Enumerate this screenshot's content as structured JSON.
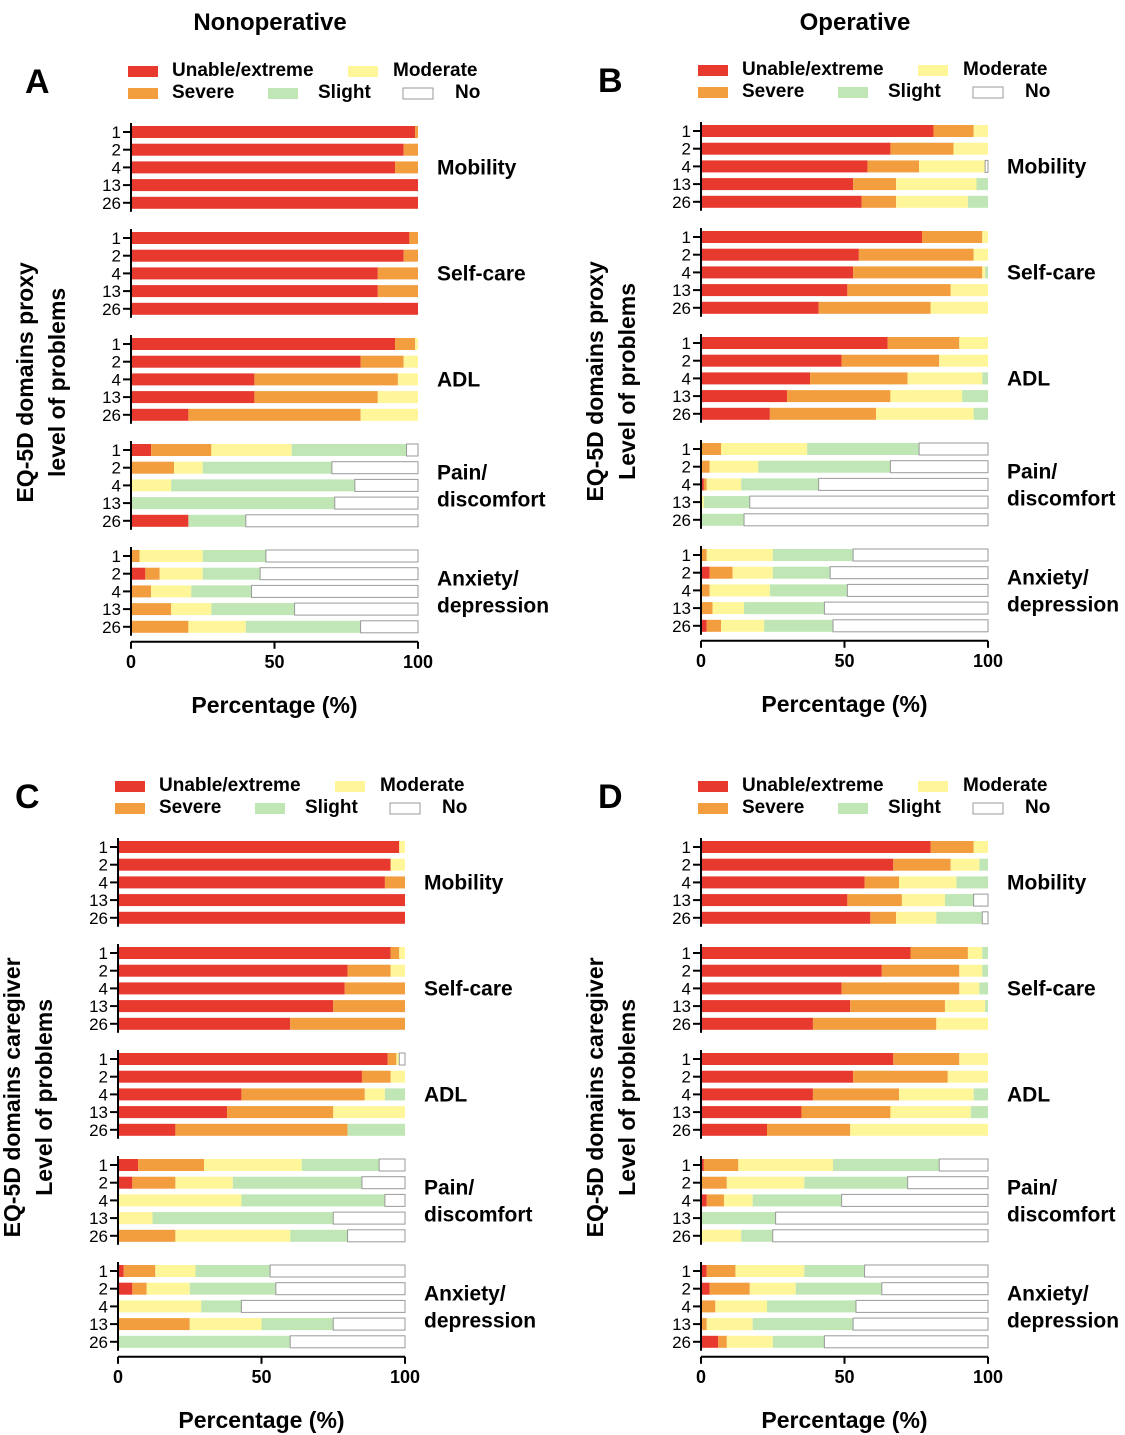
{
  "figure": {
    "column_titles": [
      "Nonoperative",
      "Operative"
    ],
    "legend": [
      {
        "name": "Unable/extreme",
        "color": "#E8392F"
      },
      {
        "name": "Severe",
        "color": "#F29E3F"
      },
      {
        "name": "Moderate",
        "color": "#FFF69A"
      },
      {
        "name": "Slight",
        "color": "#BFE6B4"
      },
      {
        "name": "No",
        "color": "#FFFFFF"
      }
    ],
    "legend_border": "#9a9a9a",
    "bar_border": "#9a9a9a"
  },
  "chart_data": [
    {
      "type": "bar",
      "orientation": "horizontal",
      "stacked": true,
      "panel": "A",
      "title": "Nonoperative",
      "ylabel": [
        "EQ-5D domains proxy",
        "level of problems"
      ],
      "xlabel": "Percentage (%)",
      "xlim": [
        0,
        100
      ],
      "xticks": [
        0,
        50,
        100
      ],
      "categories": [
        "1",
        "2",
        "4",
        "13",
        "26"
      ],
      "domains": [
        {
          "label": [
            "Mobility"
          ],
          "bars": [
            [
              99,
              1,
              0,
              0,
              0
            ],
            [
              95,
              5,
              0,
              0,
              0
            ],
            [
              92,
              8,
              0,
              0,
              0
            ],
            [
              100,
              0,
              0,
              0,
              0
            ],
            [
              100,
              0,
              0,
              0,
              0
            ]
          ]
        },
        {
          "label": [
            "Self-care"
          ],
          "bars": [
            [
              97,
              3,
              0,
              0,
              0
            ],
            [
              95,
              5,
              0,
              0,
              0
            ],
            [
              86,
              14,
              0,
              0,
              0
            ],
            [
              86,
              14,
              0,
              0,
              0
            ],
            [
              100,
              0,
              0,
              0,
              0
            ]
          ]
        },
        {
          "label": [
            "ADL"
          ],
          "bars": [
            [
              92,
              7,
              1,
              0,
              0
            ],
            [
              80,
              15,
              5,
              0,
              0
            ],
            [
              43,
              50,
              7,
              0,
              0
            ],
            [
              43,
              43,
              14,
              0,
              0
            ],
            [
              20,
              60,
              20,
              0,
              0
            ]
          ]
        },
        {
          "label": [
            "Pain/",
            "discomfort"
          ],
          "bars": [
            [
              7,
              21,
              28,
              40,
              4
            ],
            [
              0,
              15,
              10,
              45,
              30
            ],
            [
              0,
              0,
              14,
              64,
              22
            ],
            [
              0,
              0,
              0,
              71,
              29
            ],
            [
              20,
              0,
              0,
              20,
              60
            ]
          ]
        },
        {
          "label": [
            "Anxiety/",
            "depression"
          ],
          "bars": [
            [
              0,
              3,
              22,
              22,
              53
            ],
            [
              5,
              5,
              15,
              20,
              55
            ],
            [
              0,
              7,
              14,
              21,
              58
            ],
            [
              0,
              14,
              14,
              29,
              43
            ],
            [
              0,
              20,
              20,
              40,
              20
            ]
          ]
        }
      ]
    },
    {
      "type": "bar",
      "orientation": "horizontal",
      "stacked": true,
      "panel": "B",
      "title": "Operative",
      "ylabel": [
        "EQ-5D domains proxy",
        "Level of problems"
      ],
      "xlabel": "Percentage (%)",
      "xlim": [
        0,
        100
      ],
      "xticks": [
        0,
        50,
        100
      ],
      "categories": [
        "1",
        "2",
        "4",
        "13",
        "26"
      ],
      "domains": [
        {
          "label": [
            "Mobility"
          ],
          "bars": [
            [
              81,
              14,
              5,
              0,
              0
            ],
            [
              66,
              22,
              12,
              0,
              0
            ],
            [
              58,
              18,
              23,
              0,
              1
            ],
            [
              53,
              15,
              28,
              4,
              0
            ],
            [
              56,
              12,
              25,
              7,
              0
            ]
          ]
        },
        {
          "label": [
            "Self-care"
          ],
          "bars": [
            [
              77,
              21,
              2,
              0,
              0
            ],
            [
              55,
              40,
              5,
              0,
              0
            ],
            [
              53,
              45,
              1,
              1,
              0
            ],
            [
              51,
              36,
              13,
              0,
              0
            ],
            [
              41,
              39,
              20,
              0,
              0
            ]
          ]
        },
        {
          "label": [
            "ADL"
          ],
          "bars": [
            [
              65,
              25,
              10,
              0,
              0
            ],
            [
              49,
              34,
              17,
              0,
              0
            ],
            [
              38,
              34,
              26,
              2,
              0
            ],
            [
              30,
              36,
              25,
              9,
              0
            ],
            [
              24,
              37,
              34,
              5,
              0
            ]
          ]
        },
        {
          "label": [
            "Pain/",
            "discomfort"
          ],
          "bars": [
            [
              0,
              7,
              30,
              39,
              24
            ],
            [
              0,
              3,
              17,
              46,
              34
            ],
            [
              1,
              1,
              12,
              27,
              59
            ],
            [
              0,
              0,
              1,
              16,
              83
            ],
            [
              0,
              0,
              0,
              15,
              85
            ]
          ]
        },
        {
          "label": [
            "Anxiety/",
            "depression"
          ],
          "bars": [
            [
              0,
              2,
              23,
              28,
              47
            ],
            [
              3,
              8,
              14,
              20,
              55
            ],
            [
              0,
              3,
              21,
              27,
              49
            ],
            [
              0,
              4,
              11,
              28,
              57
            ],
            [
              2,
              5,
              15,
              24,
              54
            ]
          ]
        }
      ]
    },
    {
      "type": "bar",
      "orientation": "horizontal",
      "stacked": true,
      "panel": "C",
      "title": "",
      "ylabel": [
        "EQ-5D domains caregiver",
        "Level of problems"
      ],
      "xlabel": "Percentage (%)",
      "xlim": [
        0,
        100
      ],
      "xticks": [
        0,
        50,
        100
      ],
      "categories": [
        "1",
        "2",
        "4",
        "13",
        "26"
      ],
      "domains": [
        {
          "label": [
            "Mobility"
          ],
          "bars": [
            [
              98,
              0,
              2,
              0,
              0
            ],
            [
              95,
              0,
              5,
              0,
              0
            ],
            [
              93,
              7,
              0,
              0,
              0
            ],
            [
              100,
              0,
              0,
              0,
              0
            ],
            [
              100,
              0,
              0,
              0,
              0
            ]
          ]
        },
        {
          "label": [
            "Self-care"
          ],
          "bars": [
            [
              95,
              3,
              2,
              0,
              0
            ],
            [
              80,
              15,
              5,
              0,
              0
            ],
            [
              79,
              21,
              0,
              0,
              0
            ],
            [
              75,
              25,
              0,
              0,
              0
            ],
            [
              60,
              40,
              0,
              0,
              0
            ]
          ]
        },
        {
          "label": [
            "ADL"
          ],
          "bars": [
            [
              94,
              3,
              1,
              0,
              2
            ],
            [
              85,
              10,
              5,
              0,
              0
            ],
            [
              43,
              43,
              7,
              7,
              0
            ],
            [
              38,
              37,
              25,
              0,
              0
            ],
            [
              20,
              60,
              0,
              20,
              0
            ]
          ]
        },
        {
          "label": [
            "Pain/",
            "discomfort"
          ],
          "bars": [
            [
              7,
              23,
              34,
              27,
              9
            ],
            [
              5,
              15,
              20,
              45,
              15
            ],
            [
              0,
              0,
              43,
              50,
              7
            ],
            [
              0,
              0,
              12,
              63,
              25
            ],
            [
              0,
              20,
              40,
              20,
              20
            ]
          ]
        },
        {
          "label": [
            "Anxiety/",
            "depression"
          ],
          "bars": [
            [
              2,
              11,
              14,
              26,
              47
            ],
            [
              5,
              5,
              15,
              30,
              45
            ],
            [
              0,
              0,
              29,
              14,
              57
            ],
            [
              0,
              25,
              25,
              25,
              25
            ],
            [
              0,
              0,
              0,
              60,
              40
            ]
          ]
        }
      ]
    },
    {
      "type": "bar",
      "orientation": "horizontal",
      "stacked": true,
      "panel": "D",
      "title": "",
      "ylabel": [
        "EQ-5D domains caregiver",
        "Level of problems"
      ],
      "xlabel": "Percentage (%)",
      "xlim": [
        0,
        100
      ],
      "xticks": [
        0,
        50,
        100
      ],
      "categories": [
        "1",
        "2",
        "4",
        "13",
        "26"
      ],
      "domains": [
        {
          "label": [
            "Mobility"
          ],
          "bars": [
            [
              80,
              15,
              5,
              0,
              0
            ],
            [
              67,
              20,
              10,
              3,
              0
            ],
            [
              57,
              12,
              20,
              11,
              0
            ],
            [
              51,
              19,
              15,
              10,
              5
            ],
            [
              59,
              9,
              14,
              16,
              2
            ]
          ]
        },
        {
          "label": [
            "Self-care"
          ],
          "bars": [
            [
              73,
              20,
              5,
              2,
              0
            ],
            [
              63,
              27,
              8,
              2,
              0
            ],
            [
              49,
              41,
              7,
              3,
              0
            ],
            [
              52,
              33,
              14,
              1,
              0
            ],
            [
              39,
              43,
              18,
              0,
              0
            ]
          ]
        },
        {
          "label": [
            "ADL"
          ],
          "bars": [
            [
              67,
              23,
              10,
              0,
              0
            ],
            [
              53,
              33,
              14,
              0,
              0
            ],
            [
              39,
              30,
              26,
              5,
              0
            ],
            [
              35,
              31,
              28,
              6,
              0
            ],
            [
              23,
              29,
              48,
              0,
              0
            ]
          ]
        },
        {
          "label": [
            "Pain/",
            "discomfort"
          ],
          "bars": [
            [
              1,
              12,
              33,
              37,
              17
            ],
            [
              0,
              9,
              27,
              36,
              28
            ],
            [
              2,
              6,
              10,
              31,
              51
            ],
            [
              0,
              0,
              0,
              26,
              74
            ],
            [
              0,
              0,
              14,
              11,
              75
            ]
          ]
        },
        {
          "label": [
            "Anxiety/",
            "depression"
          ],
          "bars": [
            [
              2,
              10,
              24,
              21,
              43
            ],
            [
              3,
              14,
              16,
              30,
              37
            ],
            [
              0,
              5,
              18,
              31,
              46
            ],
            [
              0,
              2,
              16,
              35,
              47
            ],
            [
              6,
              3,
              16,
              18,
              57
            ]
          ]
        }
      ]
    }
  ]
}
